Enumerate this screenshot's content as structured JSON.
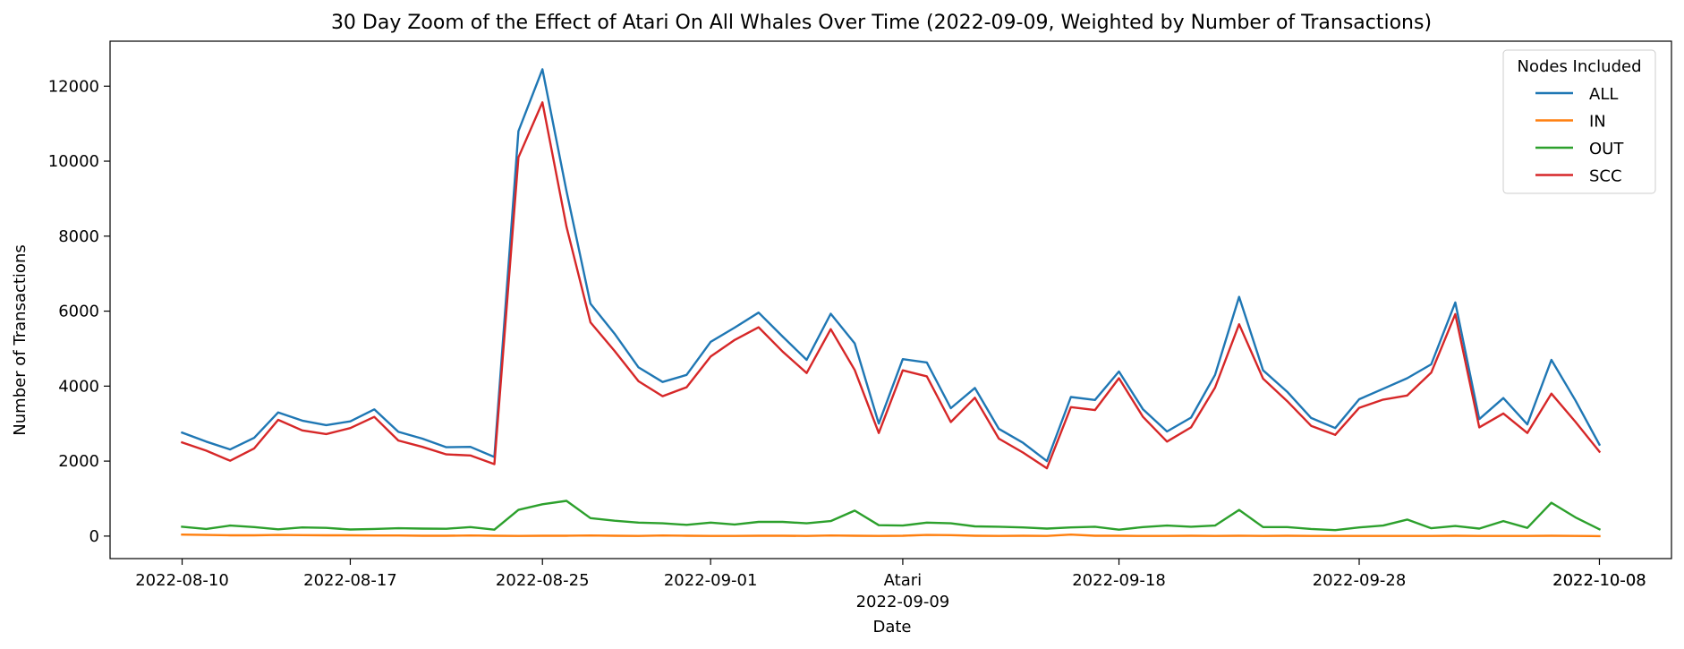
{
  "chart_data": {
    "type": "line",
    "title": "30 Day Zoom of the Effect of Atari On All Whales Over Time (2022-09-09, Weighted by Number of Transactions)",
    "xlabel": "Date",
    "ylabel": "Number of Transactions",
    "ylim": [
      -600,
      13200
    ],
    "xlim": [
      "2022-08-07",
      "2022-10-11"
    ],
    "yticks": [
      0,
      2000,
      4000,
      6000,
      8000,
      10000,
      12000
    ],
    "xticks": [
      {
        "date": "2022-08-10",
        "label": "2022-08-10"
      },
      {
        "date": "2022-08-17",
        "label": "2022-08-17"
      },
      {
        "date": "2022-08-25",
        "label": "2022-08-25"
      },
      {
        "date": "2022-09-01",
        "label": "2022-09-01"
      },
      {
        "date": "2022-09-09",
        "label": "Atari"
      },
      {
        "date": "2022-09-18",
        "label": "2022-09-18"
      },
      {
        "date": "2022-09-28",
        "label": "2022-09-28"
      },
      {
        "date": "2022-10-08",
        "label": "2022-10-08"
      }
    ],
    "event_label": {
      "date": "2022-09-09",
      "label": "2022-09-09"
    },
    "end_label": {
      "date": "2022-10-08",
      "label": "2022-10-08"
    },
    "grid": false,
    "legend": {
      "title": "Nodes Included",
      "position": "top-right"
    },
    "x": [
      "2022-08-10",
      "2022-08-11",
      "2022-08-12",
      "2022-08-13",
      "2022-08-14",
      "2022-08-15",
      "2022-08-16",
      "2022-08-17",
      "2022-08-18",
      "2022-08-19",
      "2022-08-20",
      "2022-08-21",
      "2022-08-22",
      "2022-08-23",
      "2022-08-24",
      "2022-08-25",
      "2022-08-26",
      "2022-08-27",
      "2022-08-28",
      "2022-08-29",
      "2022-08-30",
      "2022-08-31",
      "2022-09-01",
      "2022-09-02",
      "2022-09-03",
      "2022-09-04",
      "2022-09-05",
      "2022-09-06",
      "2022-09-07",
      "2022-09-08",
      "2022-09-09",
      "2022-09-10",
      "2022-09-11",
      "2022-09-12",
      "2022-09-13",
      "2022-09-14",
      "2022-09-15",
      "2022-09-16",
      "2022-09-17",
      "2022-09-18",
      "2022-09-19",
      "2022-09-20",
      "2022-09-21",
      "2022-09-22",
      "2022-09-23",
      "2022-09-24",
      "2022-09-25",
      "2022-09-26",
      "2022-09-27",
      "2022-09-28",
      "2022-09-29",
      "2022-09-30",
      "2022-10-01",
      "2022-10-02",
      "2022-10-03",
      "2022-10-04",
      "2022-10-05",
      "2022-10-06",
      "2022-10-07",
      "2022-10-08"
    ],
    "series": [
      {
        "name": "ALL",
        "color": "#1f77b4",
        "values": [
          2760,
          2520,
          2310,
          2620,
          3300,
          3080,
          2960,
          3060,
          3380,
          2780,
          2600,
          2370,
          2380,
          2110,
          10800,
          12450,
          9200,
          6200,
          5400,
          4500,
          4110,
          4300,
          5180,
          5560,
          5960,
          5320,
          4700,
          5930,
          5140,
          3000,
          4720,
          4630,
          3410,
          3950,
          2860,
          2490,
          2000,
          3710,
          3630,
          4390,
          3380,
          2790,
          3160,
          4300,
          6380,
          4420,
          3850,
          3150,
          2880,
          3650,
          3930,
          4210,
          4580,
          6230,
          3120,
          3680,
          2980,
          4700,
          3620,
          2440
        ]
      },
      {
        "name": "IN",
        "color": "#ff7f0e",
        "values": [
          40,
          30,
          20,
          20,
          30,
          25,
          20,
          20,
          15,
          15,
          10,
          10,
          15,
          10,
          5,
          10,
          10,
          15,
          10,
          5,
          15,
          10,
          5,
          5,
          10,
          10,
          5,
          15,
          10,
          5,
          10,
          30,
          25,
          10,
          5,
          10,
          5,
          40,
          10,
          10,
          5,
          5,
          10,
          5,
          10,
          5,
          10,
          5,
          5,
          5,
          5,
          5,
          5,
          10,
          5,
          5,
          5,
          10,
          5,
          0
        ]
      },
      {
        "name": "OUT",
        "color": "#2ca02c",
        "values": [
          250,
          190,
          280,
          240,
          180,
          230,
          220,
          175,
          190,
          210,
          200,
          195,
          240,
          170,
          700,
          850,
          940,
          480,
          410,
          360,
          340,
          300,
          360,
          310,
          380,
          380,
          340,
          400,
          680,
          290,
          280,
          360,
          340,
          260,
          250,
          230,
          200,
          230,
          250,
          170,
          240,
          280,
          250,
          280,
          700,
          240,
          240,
          190,
          160,
          230,
          280,
          440,
          210,
          270,
          200,
          400,
          220,
          890,
          500,
          180
        ]
      },
      {
        "name": "SCC",
        "color": "#d62728",
        "values": [
          2500,
          2280,
          2010,
          2340,
          3100,
          2820,
          2720,
          2880,
          3180,
          2550,
          2380,
          2180,
          2150,
          1920,
          10100,
          11570,
          8250,
          5700,
          4940,
          4130,
          3730,
          3970,
          4790,
          5230,
          5570,
          4920,
          4350,
          5520,
          4430,
          2750,
          4420,
          4260,
          3040,
          3690,
          2600,
          2230,
          1810,
          3440,
          3360,
          4210,
          3180,
          2520,
          2900,
          3960,
          5650,
          4200,
          3600,
          2940,
          2700,
          3420,
          3640,
          3750,
          4360,
          5920,
          2900,
          3270,
          2750,
          3800,
          3050,
          2250
        ]
      }
    ]
  }
}
